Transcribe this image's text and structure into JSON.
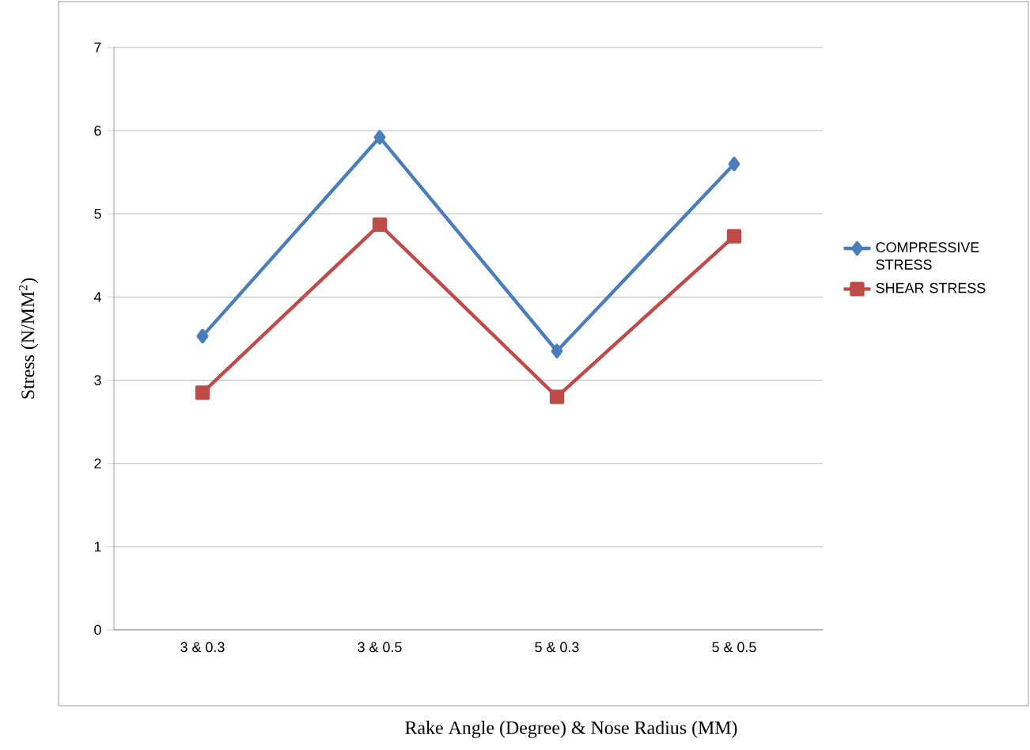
{
  "chart_data": {
    "type": "line",
    "xlabel": "Rake Angle (Degree) & Nose Radius (MM)",
    "ylabel": "Stress (N/MM$^{2}$)",
    "categories": [
      "3 & 0.3",
      "3 & 0.5",
      "5 & 0.3",
      "5 & 0.5"
    ],
    "series": [
      {
        "name": "COMPRESSIVE STRESS",
        "color": "#4a7ebb",
        "marker": "diamond",
        "values": [
          3.53,
          5.92,
          3.35,
          5.6
        ]
      },
      {
        "name": "SHEAR STRESS",
        "color": "#be4b48",
        "marker": "square",
        "values": [
          2.85,
          4.87,
          2.8,
          4.73
        ]
      }
    ],
    "ylim": [
      0,
      7
    ],
    "yticks": [
      0,
      1,
      2,
      3,
      4,
      5,
      6,
      7
    ],
    "grid": "y",
    "legend": "right"
  }
}
